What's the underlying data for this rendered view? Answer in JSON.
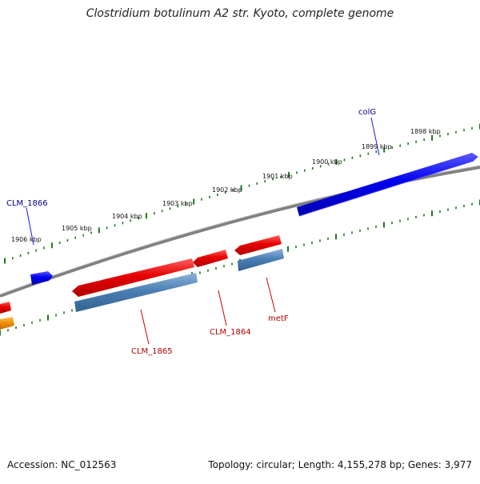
{
  "title": "Clostridium botulinum A2 str. Kyoto, complete genome",
  "footer": {
    "accession": "Accession: NC_012563",
    "summary": "Topology: circular; Length: 4,155,278 bp; Genes: 3,977"
  },
  "ruler": {
    "ticks": [
      {
        "label": "1898 kbp"
      },
      {
        "label": "1899 kbp"
      },
      {
        "label": "1900 kbp"
      },
      {
        "label": "1901 kbp"
      },
      {
        "label": "1902 kbp"
      },
      {
        "label": "1903 kbp"
      },
      {
        "label": "1904 kbp"
      },
      {
        "label": "1905 kbp"
      },
      {
        "label": "1906 kbp"
      }
    ]
  },
  "genes": [
    {
      "name": "colG",
      "strand": "forward",
      "color": "#0000ee"
    },
    {
      "name": "CLM_1866",
      "strand": "forward",
      "color": "#0000ee"
    },
    {
      "name": "CLM_1865",
      "strand": "reverse",
      "color": "#e60000"
    },
    {
      "name": "CLM_1864",
      "strand": "reverse",
      "color": "#e60000"
    },
    {
      "name": "metF",
      "strand": "reverse",
      "color": "#e60000"
    }
  ],
  "colors": {
    "backbone": "#808080",
    "tick": "#1a7a1a",
    "forward_gene": "#0000ee",
    "reverse_gene": "#e60000",
    "cds": "#4a7fb5",
    "other_gene": "#f08c00",
    "label_forward": "#00008b",
    "label_reverse": "#b00000"
  }
}
